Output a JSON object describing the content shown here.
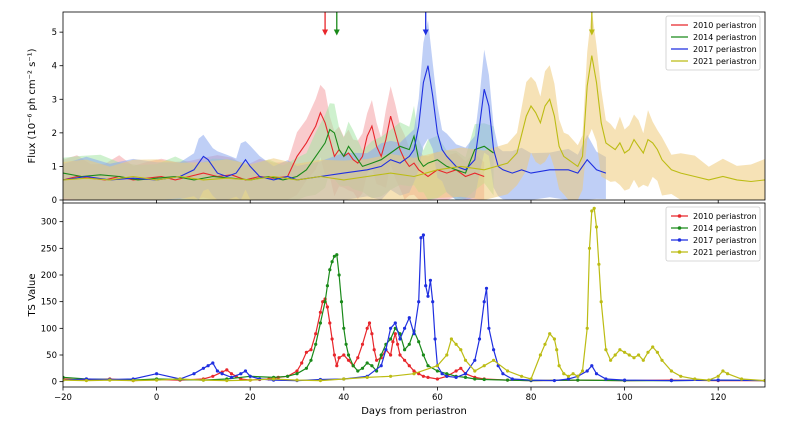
{
  "colors": {
    "2010": "#e8262b",
    "2014": "#1a8a1a",
    "2017": "#1f2fe0",
    "2021": "#bcbc14"
  },
  "chart_data": [
    {
      "panel": "top",
      "type": "line",
      "title": "",
      "xlabel": "",
      "ylabel": "Flux (10⁻⁶ ph cm⁻² s⁻¹)",
      "ylim": [
        0,
        5.6
      ],
      "xlim": [
        -20,
        130
      ],
      "yticks": [
        0,
        1,
        2,
        3,
        4,
        5
      ],
      "legend_position": "top-right",
      "bands": true,
      "arrows": [
        {
          "series": "2010 periastron",
          "x": 36,
          "y": 5.1
        },
        {
          "series": "2014 periastron",
          "x": 38.5,
          "y": 5.1
        },
        {
          "series": "2017 periastron",
          "x": 57.5,
          "y": 5.1
        },
        {
          "series": "2021 periastron",
          "x": 93,
          "y": 5.1
        }
      ],
      "series": [
        {
          "name": "2010 periastron",
          "key": "2010",
          "x": [
            -20,
            -17,
            -14,
            -11,
            -8,
            -5,
            -2,
            1,
            4,
            7,
            10,
            13,
            16,
            19,
            22,
            25,
            28,
            30,
            32,
            34,
            35,
            36,
            37,
            38,
            39,
            40,
            41,
            42,
            43,
            44,
            45,
            46,
            47,
            48,
            49,
            50,
            51,
            52,
            53,
            54,
            55,
            56,
            57,
            58,
            60,
            62,
            64,
            66,
            68,
            70
          ],
          "y": [
            0.6,
            0.7,
            0.65,
            0.6,
            0.7,
            0.6,
            0.65,
            0.7,
            0.6,
            0.7,
            0.8,
            0.7,
            0.75,
            0.6,
            0.7,
            0.65,
            0.7,
            1.3,
            1.7,
            2.2,
            2.6,
            2.3,
            1.8,
            1.3,
            1.5,
            1.3,
            1.4,
            1.2,
            1.1,
            1.3,
            1.9,
            2.2,
            1.6,
            1.3,
            1.8,
            2.5,
            2.0,
            1.5,
            1.2,
            1.0,
            1.1,
            0.9,
            0.8,
            0.7,
            0.9,
            0.8,
            0.9,
            0.7,
            0.8,
            0.7
          ]
        },
        {
          "name": "2014 periastron",
          "key": "2014",
          "x": [
            -20,
            -16,
            -12,
            -8,
            -4,
            0,
            4,
            8,
            12,
            16,
            20,
            24,
            27,
            30,
            32,
            34,
            36,
            37,
            38,
            39,
            40,
            41,
            42,
            44,
            46,
            48,
            50,
            52,
            54,
            55,
            56,
            57,
            58,
            60,
            62,
            64,
            66,
            68,
            70,
            72
          ],
          "y": [
            0.8,
            0.7,
            0.75,
            0.7,
            0.6,
            0.65,
            0.7,
            0.6,
            0.7,
            0.65,
            0.6,
            0.7,
            0.6,
            0.7,
            0.9,
            1.3,
            1.7,
            2.1,
            2.0,
            1.5,
            1.3,
            1.6,
            1.4,
            1.0,
            1.1,
            1.2,
            1.4,
            1.6,
            1.5,
            1.9,
            1.2,
            1.0,
            1.1,
            1.2,
            1.0,
            0.9,
            0.8,
            1.5,
            1.6,
            1.4
          ]
        },
        {
          "name": "2017 periastron",
          "key": "2017",
          "x": [
            -20,
            -15,
            -10,
            -5,
            0,
            5,
            8,
            9,
            10,
            11,
            12,
            13,
            15,
            17,
            18,
            19,
            20,
            22,
            25,
            28,
            30,
            35,
            40,
            45,
            48,
            50,
            52,
            54,
            55,
            56,
            57,
            58,
            59,
            60,
            61,
            62,
            64,
            66,
            68,
            69,
            70,
            71,
            72,
            73,
            74,
            76,
            78,
            80,
            84,
            88,
            90,
            92,
            94,
            96
          ],
          "y": [
            0.6,
            0.7,
            0.6,
            0.65,
            0.6,
            0.7,
            0.9,
            1.1,
            1.3,
            1.2,
            1.0,
            0.8,
            0.7,
            0.8,
            1.0,
            1.2,
            1.0,
            0.7,
            0.6,
            0.7,
            0.6,
            0.7,
            0.8,
            0.9,
            1.0,
            1.2,
            1.1,
            1.3,
            1.5,
            2.2,
            3.5,
            4.0,
            3.1,
            2.0,
            1.5,
            1.3,
            1.0,
            0.9,
            1.2,
            2.2,
            3.3,
            2.8,
            1.5,
            1.0,
            0.9,
            0.8,
            0.9,
            0.8,
            0.9,
            0.9,
            0.8,
            1.2,
            0.9,
            0.8
          ]
        },
        {
          "name": "2021 periastron",
          "key": "2021",
          "x": [
            -20,
            -15,
            -10,
            -5,
            0,
            5,
            10,
            15,
            20,
            25,
            30,
            35,
            40,
            45,
            50,
            55,
            60,
            65,
            70,
            75,
            77,
            79,
            80,
            81,
            82,
            83,
            84,
            85,
            86,
            87,
            88,
            89,
            90,
            91,
            92,
            93,
            94,
            95,
            96,
            97,
            98,
            99,
            100,
            101,
            102,
            103,
            104,
            105,
            106,
            107,
            108,
            110,
            112,
            115,
            118,
            121,
            124,
            127,
            130
          ],
          "y": [
            0.6,
            0.65,
            0.6,
            0.7,
            0.6,
            0.7,
            0.6,
            0.65,
            0.6,
            0.7,
            0.6,
            0.7,
            0.6,
            0.7,
            0.8,
            0.7,
            0.9,
            1.0,
            0.9,
            1.1,
            1.4,
            2.5,
            2.8,
            2.6,
            2.3,
            2.8,
            3.0,
            2.5,
            1.6,
            1.3,
            1.2,
            1.1,
            1.0,
            1.3,
            3.4,
            4.3,
            3.5,
            2.3,
            1.7,
            1.6,
            1.5,
            1.7,
            1.4,
            1.5,
            1.8,
            1.6,
            1.4,
            1.8,
            1.7,
            1.5,
            1.2,
            0.9,
            0.8,
            0.7,
            0.6,
            0.7,
            0.6,
            0.55,
            0.6
          ]
        }
      ]
    },
    {
      "panel": "bottom",
      "type": "line",
      "title": "",
      "xlabel": "Days from periastron",
      "ylabel": "TS Value",
      "ylim": [
        -10,
        335
      ],
      "xlim": [
        -20,
        130
      ],
      "yticks": [
        0,
        50,
        100,
        150,
        200,
        250,
        300
      ],
      "xticks": [
        -20,
        0,
        20,
        40,
        60,
        80,
        100,
        120
      ],
      "legend_position": "top-right",
      "markers": true,
      "series": [
        {
          "name": "2010 periastron",
          "key": "2010",
          "x": [
            -20,
            -15,
            -10,
            -5,
            0,
            5,
            10,
            12,
            14,
            15,
            16,
            17,
            18,
            20,
            22,
            24,
            26,
            28,
            30,
            31,
            32,
            33,
            34,
            35,
            35.5,
            36,
            36.5,
            37,
            37.5,
            38,
            38.5,
            39,
            40,
            41,
            42,
            43,
            44,
            45,
            45.5,
            46,
            46.5,
            47,
            48,
            49,
            50,
            50.5,
            51,
            51.5,
            52,
            53,
            54,
            55,
            56,
            57,
            58,
            60,
            62,
            64,
            65,
            66,
            68,
            70,
            75,
            80,
            90,
            100,
            110,
            120,
            130
          ],
          "y": [
            5,
            3,
            5,
            2,
            4,
            3,
            5,
            10,
            18,
            22,
            15,
            10,
            5,
            3,
            4,
            5,
            8,
            10,
            20,
            35,
            55,
            60,
            90,
            130,
            150,
            155,
            140,
            110,
            80,
            50,
            30,
            45,
            50,
            40,
            30,
            45,
            70,
            100,
            110,
            90,
            60,
            40,
            45,
            60,
            50,
            75,
            90,
            70,
            50,
            40,
            30,
            20,
            15,
            10,
            8,
            5,
            10,
            20,
            25,
            15,
            8,
            5,
            3,
            2,
            3,
            2,
            3,
            2,
            2
          ]
        },
        {
          "name": "2014 periastron",
          "key": "2014",
          "x": [
            -20,
            -15,
            -10,
            -5,
            0,
            5,
            10,
            15,
            20,
            25,
            28,
            30,
            32,
            33,
            34,
            35,
            36,
            36.5,
            37,
            37.5,
            38,
            38.5,
            39,
            39.5,
            40,
            40.5,
            41,
            42,
            43,
            44,
            45,
            46,
            47,
            48,
            49,
            50,
            51,
            52,
            53,
            54,
            55,
            56,
            57,
            58,
            60,
            62,
            64,
            66,
            68,
            70,
            75,
            80,
            90,
            100,
            110,
            120,
            130
          ],
          "y": [
            8,
            5,
            4,
            3,
            5,
            4,
            3,
            5,
            10,
            8,
            10,
            15,
            25,
            40,
            70,
            110,
            150,
            180,
            210,
            225,
            235,
            238,
            200,
            150,
            100,
            70,
            50,
            30,
            20,
            25,
            35,
            30,
            20,
            50,
            70,
            80,
            100,
            90,
            60,
            70,
            95,
            75,
            50,
            30,
            20,
            15,
            10,
            8,
            5,
            4,
            3,
            2,
            3,
            2,
            2,
            3,
            2
          ]
        },
        {
          "name": "2017 periastron",
          "key": "2017",
          "x": [
            -20,
            -15,
            -10,
            -5,
            0,
            5,
            8,
            10,
            11,
            12,
            13,
            14,
            16,
            18,
            19,
            20,
            22,
            25,
            30,
            35,
            40,
            45,
            48,
            49,
            50,
            51,
            52,
            53,
            54,
            55,
            56,
            56.5,
            57,
            57.5,
            58,
            58.5,
            59,
            59.5,
            60,
            61,
            62,
            64,
            66,
            68,
            69,
            70,
            70.5,
            71,
            72,
            73,
            74,
            76,
            80,
            85,
            88,
            90,
            92,
            93,
            94,
            96,
            100,
            110,
            120,
            130
          ],
          "y": [
            3,
            5,
            4,
            5,
            15,
            5,
            15,
            25,
            30,
            35,
            20,
            15,
            8,
            15,
            20,
            10,
            5,
            3,
            2,
            4,
            5,
            10,
            30,
            60,
            100,
            110,
            80,
            100,
            120,
            90,
            150,
            270,
            275,
            180,
            160,
            190,
            150,
            80,
            30,
            15,
            10,
            8,
            15,
            40,
            80,
            150,
            175,
            100,
            60,
            30,
            15,
            5,
            3,
            2,
            5,
            10,
            20,
            30,
            15,
            5,
            3,
            2,
            3,
            2
          ]
        },
        {
          "name": "2021 periastron",
          "key": "2021",
          "x": [
            -20,
            -15,
            -10,
            -5,
            0,
            5,
            10,
            15,
            20,
            25,
            30,
            35,
            40,
            45,
            50,
            55,
            60,
            62,
            63,
            64,
            65,
            66,
            68,
            70,
            72,
            75,
            78,
            80,
            82,
            83,
            84,
            85,
            85.5,
            86,
            87,
            88,
            89,
            90,
            91,
            92,
            92.5,
            93,
            93.5,
            94,
            94.5,
            95,
            96,
            97,
            98,
            99,
            100,
            101,
            102,
            103,
            104,
            105,
            106,
            107,
            108,
            110,
            112,
            115,
            118,
            120,
            121,
            122,
            125,
            130
          ],
          "y": [
            3,
            2,
            3,
            2,
            3,
            5,
            3,
            2,
            3,
            5,
            3,
            2,
            5,
            8,
            10,
            15,
            30,
            50,
            80,
            70,
            60,
            40,
            20,
            30,
            40,
            20,
            10,
            5,
            50,
            70,
            90,
            80,
            60,
            30,
            15,
            10,
            15,
            10,
            20,
            100,
            250,
            320,
            325,
            290,
            220,
            150,
            60,
            40,
            50,
            60,
            55,
            50,
            45,
            50,
            40,
            55,
            65,
            55,
            40,
            20,
            10,
            5,
            3,
            10,
            20,
            15,
            5,
            2
          ]
        }
      ]
    }
  ]
}
